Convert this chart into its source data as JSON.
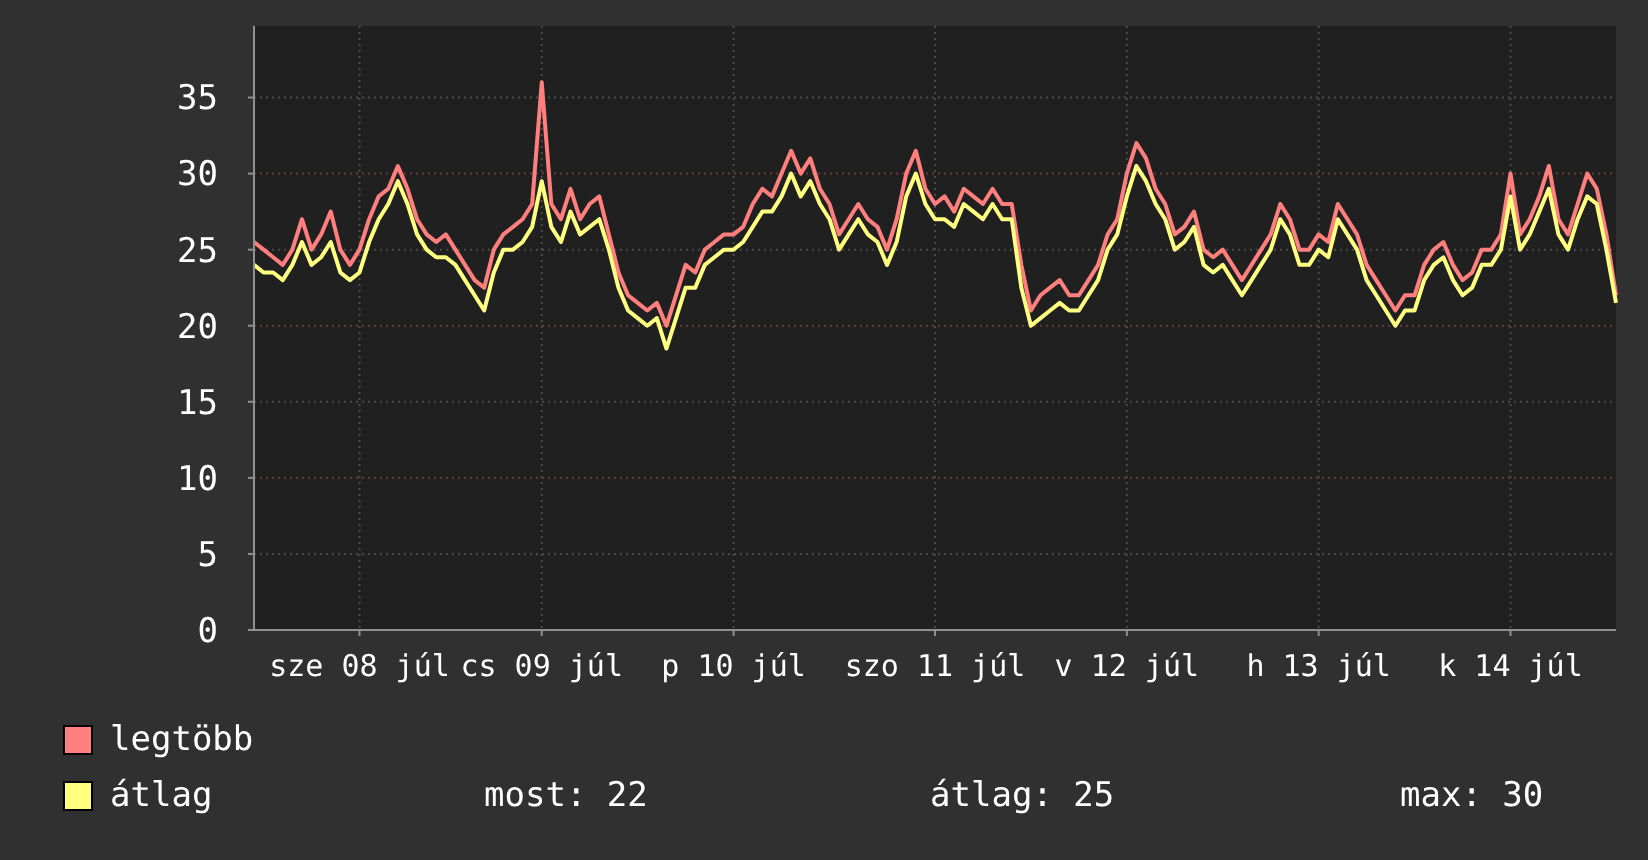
{
  "chart_data": {
    "type": "line",
    "ylim": [
      0,
      39.7
    ],
    "categories": [
      null,
      null,
      null,
      null,
      null,
      null,
      null,
      null,
      null,
      null,
      null,
      "sze 08 júl",
      null,
      null,
      null,
      null,
      null,
      null,
      null,
      null,
      null,
      null,
      null,
      null,
      null,
      null,
      null,
      null,
      null,
      null,
      "cs 09 júl",
      null,
      null,
      null,
      null,
      null,
      null,
      null,
      null,
      null,
      null,
      null,
      null,
      null,
      null,
      null,
      null,
      null,
      null,
      null,
      "p 10 júl",
      null,
      null,
      null,
      null,
      null,
      null,
      null,
      null,
      null,
      null,
      null,
      null,
      null,
      null,
      null,
      null,
      null,
      null,
      null,
      null,
      "szo 11 júl",
      null,
      null,
      null,
      null,
      null,
      null,
      null,
      null,
      null,
      null,
      null,
      null,
      null,
      null,
      null,
      null,
      null,
      null,
      null,
      "v 12 júl",
      null,
      null,
      null,
      null,
      null,
      null,
      null,
      null,
      null,
      null,
      null,
      null,
      null,
      null,
      null,
      null,
      null,
      null,
      null,
      "h 13 júl",
      null,
      null,
      null,
      null,
      null,
      null,
      null,
      null,
      null,
      null,
      null,
      null,
      null,
      null,
      null,
      null,
      null,
      null,
      null,
      "k 14 júl",
      null,
      null,
      null,
      null,
      null,
      null,
      null,
      null,
      null,
      null,
      null
    ],
    "yticks": [
      0,
      5,
      10,
      15,
      20,
      25,
      30,
      35
    ],
    "grid": true,
    "legend": "bottom",
    "marker": "none",
    "line_style": "solid",
    "series": [
      {
        "name": "legtöbb",
        "color": "#ff7f7f",
        "values": [
          25.5,
          25,
          24.5,
          24,
          25,
          27,
          25,
          26,
          27.5,
          25,
          24,
          25,
          27,
          28.5,
          29,
          30.5,
          29,
          27,
          26,
          25.5,
          26,
          25,
          24,
          23,
          22.5,
          25,
          26,
          26.5,
          27,
          28,
          36,
          28,
          27,
          29,
          27,
          28,
          28.5,
          26,
          23.5,
          22,
          21.5,
          21,
          21.5,
          20,
          22,
          24,
          23.5,
          25,
          25.5,
          26,
          26,
          26.5,
          28,
          29,
          28.5,
          30,
          31.5,
          30,
          31,
          29,
          28,
          26,
          27,
          28,
          27,
          26.5,
          25,
          27,
          30,
          31.5,
          29,
          28,
          28.5,
          27.5,
          29,
          28.5,
          28,
          29,
          28,
          28,
          24,
          21,
          22,
          22.5,
          23,
          22,
          22,
          23,
          24,
          26,
          27,
          30,
          32,
          31,
          29,
          28,
          26,
          26.5,
          27.5,
          25,
          24.5,
          25,
          24,
          23,
          24,
          25,
          26,
          28,
          27,
          25,
          25,
          26,
          25.5,
          28,
          27,
          26,
          24,
          23,
          22,
          21,
          22,
          22,
          24,
          25,
          25.5,
          24,
          23,
          23.5,
          25,
          25,
          26,
          30,
          26,
          27,
          28.5,
          30.5,
          27,
          26,
          28,
          30,
          29,
          26,
          22
        ]
      },
      {
        "name": "átlag",
        "color": "#ffff80",
        "values": [
          24,
          23.5,
          23.5,
          23,
          24,
          25.5,
          24,
          24.5,
          25.5,
          23.5,
          23,
          23.5,
          25.5,
          27,
          28,
          29.5,
          28,
          26,
          25,
          24.5,
          24.5,
          24,
          23,
          22,
          21,
          23.5,
          25,
          25,
          25.5,
          26.5,
          29.5,
          26.5,
          25.5,
          27.5,
          26,
          26.5,
          27,
          25,
          22.5,
          21,
          20.5,
          20,
          20.5,
          18.5,
          20.5,
          22.5,
          22.5,
          24,
          24.5,
          25,
          25,
          25.5,
          26.5,
          27.5,
          27.5,
          28.5,
          30,
          28.5,
          29.5,
          28,
          27,
          25,
          26,
          27,
          26,
          25.5,
          24,
          25.5,
          28.5,
          30,
          28,
          27,
          27,
          26.5,
          28,
          27.5,
          27,
          28,
          27,
          27,
          22.5,
          20,
          20.5,
          21,
          21.5,
          21,
          21,
          22,
          23,
          25,
          26,
          28.5,
          30.5,
          29.5,
          28,
          27,
          25,
          25.5,
          26.5,
          24,
          23.5,
          24,
          23,
          22,
          23,
          24,
          25,
          27,
          26,
          24,
          24,
          25,
          24.5,
          27,
          26,
          25,
          23,
          22,
          21,
          20,
          21,
          21,
          23,
          24,
          24.5,
          23,
          22,
          22.5,
          24,
          24,
          25,
          28.5,
          25,
          26,
          27.5,
          29,
          26,
          25,
          27,
          28.5,
          28,
          25,
          21.5
        ]
      }
    ],
    "annotations": [
      "most: 22",
      "átlag: 25",
      "max: 30"
    ]
  }
}
